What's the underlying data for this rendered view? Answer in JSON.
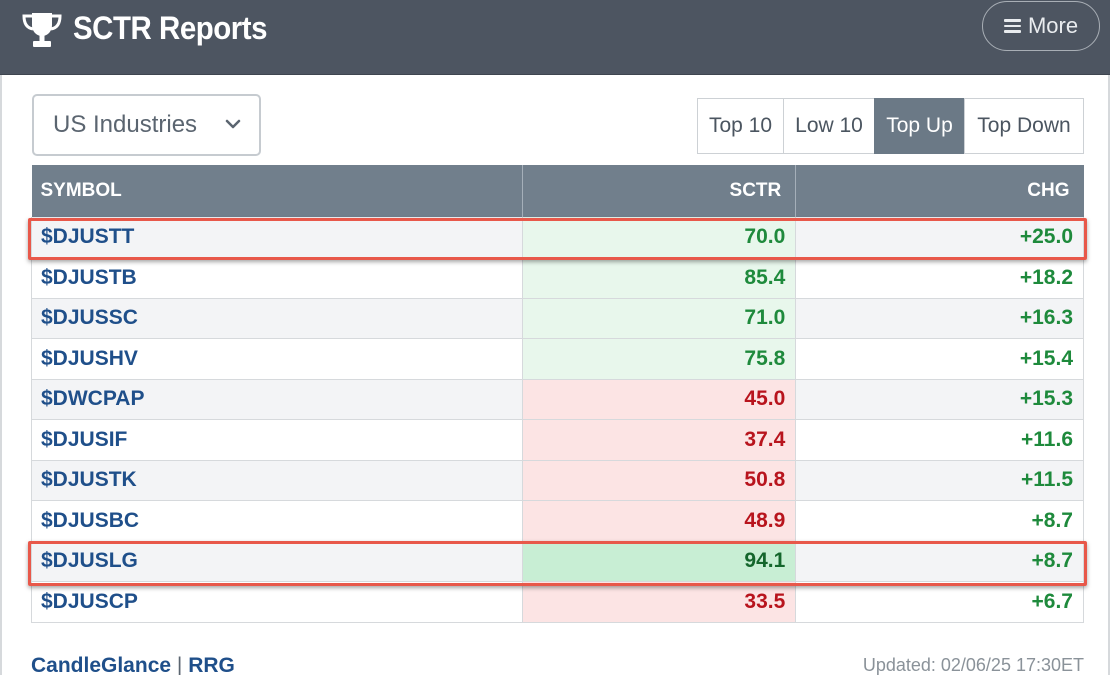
{
  "header": {
    "title": "SCTR Reports",
    "more_label": "More",
    "trophy_icon": "trophy-icon",
    "menu_icon": "hamburger-icon"
  },
  "filter": {
    "selected": "US Industries",
    "chevron_icon": "chevron-down-icon"
  },
  "tabs": [
    {
      "label": "Top 10",
      "active": false
    },
    {
      "label": "Low 10",
      "active": false
    },
    {
      "label": "Top Up",
      "active": true
    },
    {
      "label": "Top Down",
      "active": false
    }
  ],
  "table": {
    "headers": {
      "symbol": "SYMBOL",
      "sctr": "SCTR",
      "chg": "CHG"
    },
    "rows": [
      {
        "symbol": "$DJUSTT",
        "sctr": "70.0",
        "chg": "+25.0"
      },
      {
        "symbol": "$DJUSTB",
        "sctr": "85.4",
        "chg": "+18.2"
      },
      {
        "symbol": "$DJUSSC",
        "sctr": "71.0",
        "chg": "+16.3"
      },
      {
        "symbol": "$DJUSHV",
        "sctr": "75.8",
        "chg": "+15.4"
      },
      {
        "symbol": "$DWCPAP",
        "sctr": "45.0",
        "chg": "+15.3"
      },
      {
        "symbol": "$DJUSIF",
        "sctr": "37.4",
        "chg": "+11.6"
      },
      {
        "symbol": "$DJUSTK",
        "sctr": "50.8",
        "chg": "+11.5"
      },
      {
        "symbol": "$DJUSBC",
        "sctr": "48.9",
        "chg": "+8.7"
      },
      {
        "symbol": "$DJUSLG",
        "sctr": "94.1",
        "chg": "+8.7"
      },
      {
        "symbol": "$DJUSCP",
        "sctr": "33.5",
        "chg": "+6.7"
      }
    ]
  },
  "footer": {
    "link1": "CandleGlance",
    "separator": "|",
    "link2": "RRG",
    "updated": "Updated: 02/06/25 17:30ET"
  },
  "colors": {
    "header_bg": "#4d5561",
    "positive": "#1e8a3c",
    "negative": "#b8141d",
    "link": "#1f4f8a",
    "highlight": "#e8584a"
  }
}
